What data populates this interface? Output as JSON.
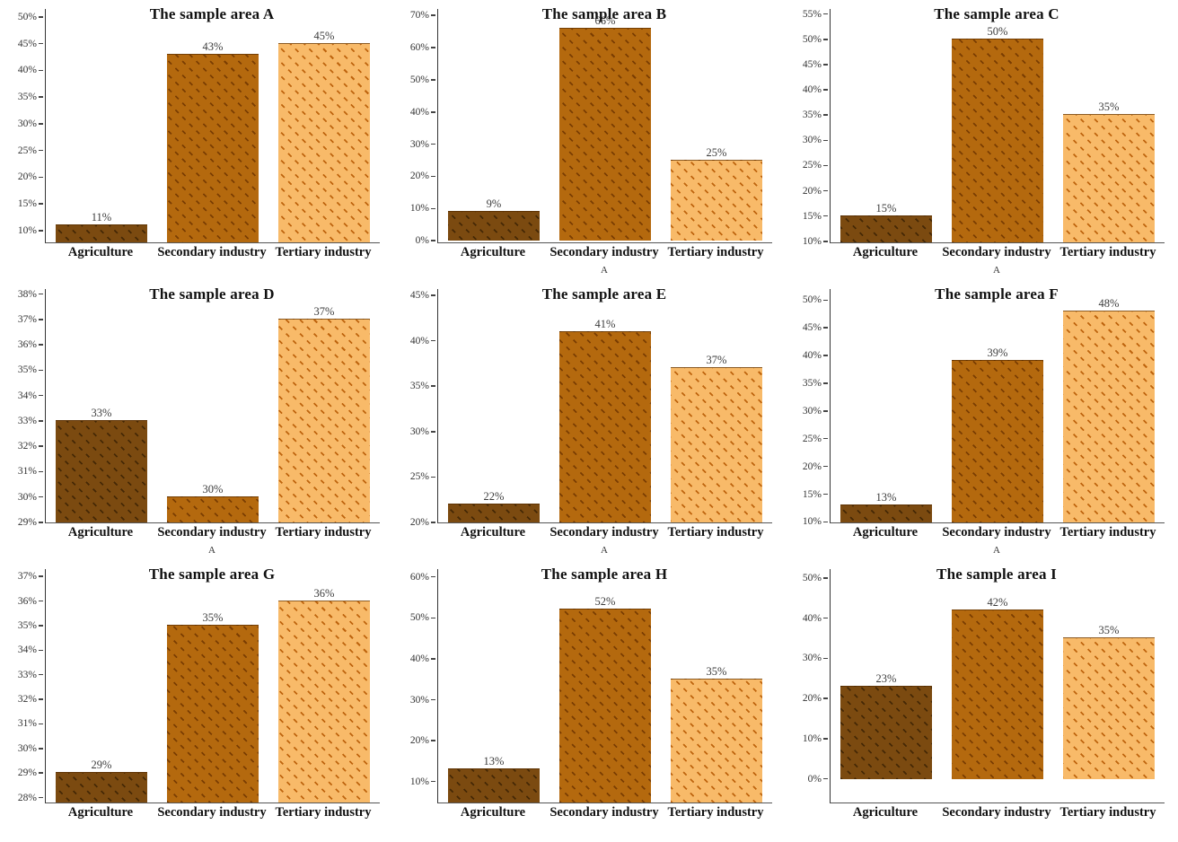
{
  "figure": {
    "kind": "3x3 grid of bar charts",
    "categories": [
      "Agriculture",
      "Secondary industry",
      "Tertiary industry"
    ],
    "bar_colors": [
      "#7B4A10",
      "#B4690E",
      "#F8BA69"
    ],
    "hatch_colors": [
      "#452805",
      "#7A3D02",
      "#BE640E"
    ],
    "axis_color": "#333333",
    "label_color": "#3c3c3c"
  },
  "chart_data": [
    {
      "type": "bar",
      "title": "The sample area A",
      "categories": [
        "Agriculture",
        "Secondary industry",
        "Tertiary industry"
      ],
      "values": [
        11,
        43,
        45
      ],
      "value_labels": [
        "11%",
        "43%",
        "45%"
      ],
      "yticks": [
        10,
        15,
        20,
        25,
        30,
        35,
        40,
        45,
        50
      ],
      "ytick_labels": [
        "10%",
        "15%",
        "20%",
        "25%",
        "30%",
        "35%",
        "40%",
        "45%",
        "50%"
      ],
      "ylim": [
        7.8,
        51.5
      ],
      "xlabel": "",
      "grid": false,
      "legend": false
    },
    {
      "type": "bar",
      "title": "The sample area B",
      "categories": [
        "Agriculture",
        "Secondary industry",
        "Tertiary industry"
      ],
      "values": [
        9,
        66,
        25
      ],
      "value_labels": [
        "9%",
        "66%",
        "25%"
      ],
      "yticks": [
        0,
        10,
        20,
        30,
        40,
        50,
        60,
        70
      ],
      "ytick_labels": [
        "0%",
        "10%",
        "20%",
        "30%",
        "40%",
        "50%",
        "60%",
        "70%"
      ],
      "ylim": [
        -0.5,
        72
      ],
      "xlabel": "A",
      "grid": false,
      "legend": false
    },
    {
      "type": "bar",
      "title": "The sample area C",
      "categories": [
        "Agriculture",
        "Secondary industry",
        "Tertiary industry"
      ],
      "values": [
        15,
        50,
        35
      ],
      "value_labels": [
        "15%",
        "50%",
        "35%"
      ],
      "yticks": [
        10,
        15,
        20,
        25,
        30,
        35,
        40,
        45,
        50,
        55
      ],
      "ytick_labels": [
        "10%",
        "15%",
        "20%",
        "25%",
        "30%",
        "35%",
        "40%",
        "45%",
        "50%",
        "55%"
      ],
      "ylim": [
        9.8,
        56
      ],
      "xlabel": "A",
      "grid": false,
      "legend": false
    },
    {
      "type": "bar",
      "title": "The sample area D",
      "categories": [
        "Agriculture",
        "Secondary industry",
        "Tertiary industry"
      ],
      "values": [
        33,
        30,
        37
      ],
      "value_labels": [
        "33%",
        "30%",
        "37%"
      ],
      "yticks": [
        29,
        30,
        31,
        32,
        33,
        34,
        35,
        36,
        37,
        38
      ],
      "ytick_labels": [
        "29%",
        "30%",
        "31%",
        "32%",
        "33%",
        "34%",
        "35%",
        "36%",
        "37%",
        "38%"
      ],
      "ylim": [
        29,
        38.2
      ],
      "xlabel": "A",
      "grid": false,
      "legend": false
    },
    {
      "type": "bar",
      "title": "The sample area E",
      "categories": [
        "Agriculture",
        "Secondary industry",
        "Tertiary industry"
      ],
      "values": [
        22,
        41,
        37
      ],
      "value_labels": [
        "22%",
        "41%",
        "37%"
      ],
      "yticks": [
        20,
        25,
        30,
        35,
        40,
        45
      ],
      "ytick_labels": [
        "20%",
        "25%",
        "30%",
        "35%",
        "40%",
        "45%"
      ],
      "ylim": [
        20,
        45.7
      ],
      "xlabel": "A",
      "grid": false,
      "legend": false
    },
    {
      "type": "bar",
      "title": "The sample area F",
      "categories": [
        "Agriculture",
        "Secondary industry",
        "Tertiary industry"
      ],
      "values": [
        13,
        39,
        48
      ],
      "value_labels": [
        "13%",
        "39%",
        "48%"
      ],
      "yticks": [
        10,
        15,
        20,
        25,
        30,
        35,
        40,
        45,
        50
      ],
      "ytick_labels": [
        "10%",
        "15%",
        "20%",
        "25%",
        "30%",
        "35%",
        "40%",
        "45%",
        "50%"
      ],
      "ylim": [
        9.9,
        52
      ],
      "xlabel": "A",
      "grid": false,
      "legend": false
    },
    {
      "type": "bar",
      "title": "The sample area G",
      "categories": [
        "Agriculture",
        "Secondary industry",
        "Tertiary industry"
      ],
      "values": [
        29,
        35,
        36
      ],
      "value_labels": [
        "29%",
        "35%",
        "36%"
      ],
      "yticks": [
        28,
        29,
        30,
        31,
        32,
        33,
        34,
        35,
        36,
        37
      ],
      "ytick_labels": [
        "28%",
        "29%",
        "30%",
        "31%",
        "32%",
        "33%",
        "34%",
        "35%",
        "36%",
        "37%"
      ],
      "ylim": [
        27.8,
        37.3
      ],
      "xlabel": "",
      "grid": false,
      "legend": false
    },
    {
      "type": "bar",
      "title": "The sample area H",
      "categories": [
        "Agriculture",
        "Secondary industry",
        "Tertiary industry"
      ],
      "values": [
        13,
        52,
        35
      ],
      "value_labels": [
        "13%",
        "52%",
        "35%"
      ],
      "yticks": [
        10,
        20,
        30,
        40,
        50,
        60
      ],
      "ytick_labels": [
        "10%",
        "20%",
        "30%",
        "40%",
        "50%",
        "60%"
      ],
      "ylim": [
        4.9,
        61.9
      ],
      "xlabel": "",
      "grid": false,
      "legend": false
    },
    {
      "type": "bar",
      "title": "The sample area I",
      "categories": [
        "Agriculture",
        "Secondary industry",
        "Tertiary industry"
      ],
      "values": [
        23,
        42,
        35
      ],
      "value_labels": [
        "23%",
        "42%",
        "35%"
      ],
      "yticks": [
        0,
        10,
        20,
        30,
        40,
        50
      ],
      "ytick_labels": [
        "0%",
        "10%",
        "20%",
        "30%",
        "40%",
        "50%"
      ],
      "ylim": [
        -5.9,
        52.2
      ],
      "xlabel": "",
      "grid": false,
      "legend": false
    }
  ]
}
